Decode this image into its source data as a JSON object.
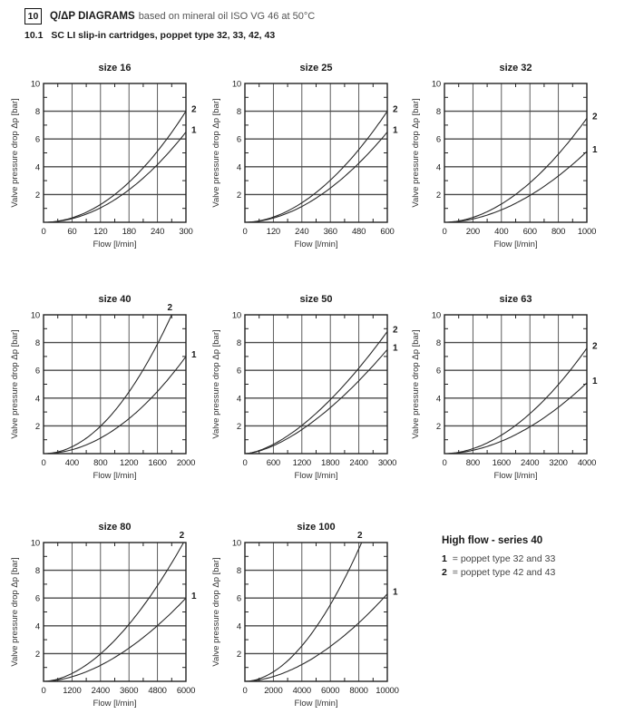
{
  "colors": {
    "ink": "#1a1a1a",
    "grid": "#4a4a4a",
    "muted": "#555555"
  },
  "header": {
    "section_number": "10",
    "title": "Q/ΔP DIAGRAMS",
    "subtitle": "based on mineral oil ISO VG 46 at 50°C",
    "section_sub": "10.1",
    "sub_title": "SC LI  slip-in cartridges, poppet type 32, 33, 42, 43"
  },
  "legend": {
    "title": "High flow - series 40",
    "items": [
      {
        "key": "1",
        "text": "= poppet type 32 and 33"
      },
      {
        "key": "2",
        "text": "= poppet type 42 and 43"
      }
    ]
  },
  "chart_data": [
    {
      "type": "line",
      "title": "size 16",
      "xlabel": "Flow [l/min]",
      "ylabel": "Valve pressure drop Δp [bar]",
      "xlim": [
        0,
        300
      ],
      "ylim": [
        0,
        10
      ],
      "x_ticks": [
        0,
        60,
        120,
        180,
        240,
        300
      ],
      "y_ticks": [
        2,
        4,
        6,
        8,
        10
      ],
      "grid": true,
      "series": [
        {
          "name": "1",
          "exponent": 2.0,
          "x_end": 300,
          "y_end": 6.5,
          "points": [
            [
              0,
              0
            ],
            [
              60,
              0.3
            ],
            [
              120,
              1.0
            ],
            [
              180,
              2.3
            ],
            [
              240,
              4.2
            ],
            [
              300,
              6.5
            ]
          ]
        },
        {
          "name": "2",
          "exponent": 2.0,
          "x_end": 300,
          "y_end": 8.0,
          "points": [
            [
              0,
              0
            ],
            [
              60,
              0.3
            ],
            [
              120,
              1.3
            ],
            [
              180,
              2.9
            ],
            [
              240,
              5.1
            ],
            [
              300,
              8.0
            ]
          ]
        }
      ]
    },
    {
      "type": "line",
      "title": "size 25",
      "xlabel": "Flow [l/min]",
      "ylabel": "Valve pressure drop Δp [bar]",
      "xlim": [
        0,
        600
      ],
      "ylim": [
        0,
        10
      ],
      "x_ticks": [
        0,
        120,
        240,
        360,
        480,
        600
      ],
      "y_ticks": [
        2,
        4,
        6,
        8,
        10
      ],
      "grid": true,
      "series": [
        {
          "name": "1",
          "exponent": 1.9,
          "x_end": 600,
          "y_end": 6.5,
          "points": [
            [
              0,
              0
            ],
            [
              120,
              0.3
            ],
            [
              240,
              1.1
            ],
            [
              360,
              2.5
            ],
            [
              480,
              4.3
            ],
            [
              600,
              6.5
            ]
          ]
        },
        {
          "name": "2",
          "exponent": 1.9,
          "x_end": 600,
          "y_end": 8.0,
          "points": [
            [
              0,
              0
            ],
            [
              120,
              0.4
            ],
            [
              240,
              1.4
            ],
            [
              360,
              3.0
            ],
            [
              480,
              5.2
            ],
            [
              600,
              8.0
            ]
          ]
        }
      ]
    },
    {
      "type": "line",
      "title": "size 32",
      "xlabel": "Flow [l/min]",
      "ylabel": "Valve pressure drop Δp [bar]",
      "xlim": [
        0,
        1000
      ],
      "ylim": [
        0,
        10
      ],
      "x_ticks": [
        0,
        200,
        400,
        600,
        800,
        1000
      ],
      "y_ticks": [
        2,
        4,
        6,
        8,
        10
      ],
      "grid": true,
      "series": [
        {
          "name": "1",
          "exponent": 1.9,
          "x_end": 1000,
          "y_end": 5.1,
          "points": [
            [
              0,
              0
            ],
            [
              200,
              0.2
            ],
            [
              400,
              0.9
            ],
            [
              600,
              1.9
            ],
            [
              800,
              3.3
            ],
            [
              1000,
              5.1
            ]
          ]
        },
        {
          "name": "2",
          "exponent": 1.9,
          "x_end": 1000,
          "y_end": 7.5,
          "points": [
            [
              0,
              0
            ],
            [
              200,
              0.4
            ],
            [
              400,
              1.3
            ],
            [
              600,
              2.8
            ],
            [
              800,
              4.9
            ],
            [
              1000,
              7.5
            ]
          ]
        }
      ]
    },
    {
      "type": "line",
      "title": "size 40",
      "xlabel": "Flow [l/min]",
      "ylabel": "Valve pressure drop Δp [bar]",
      "xlim": [
        0,
        2000
      ],
      "ylim": [
        0,
        10
      ],
      "x_ticks": [
        0,
        400,
        800,
        1200,
        1600,
        2000
      ],
      "y_ticks": [
        2,
        4,
        6,
        8,
        10
      ],
      "grid": true,
      "series": [
        {
          "name": "1",
          "exponent": 2.0,
          "x_end": 2000,
          "y_end": 7.0,
          "points": [
            [
              0,
              0
            ],
            [
              400,
              0.3
            ],
            [
              800,
              1.1
            ],
            [
              1200,
              2.5
            ],
            [
              1600,
              4.5
            ],
            [
              2000,
              7.0
            ]
          ]
        },
        {
          "name": "2",
          "exponent": 2.0,
          "x_end": 1800,
          "y_end": 10.0,
          "points": [
            [
              0,
              0
            ],
            [
              400,
              0.5
            ],
            [
              800,
              2.0
            ],
            [
              1200,
              4.4
            ],
            [
              1600,
              7.9
            ],
            [
              1800,
              10.0
            ]
          ]
        }
      ]
    },
    {
      "type": "line",
      "title": "size 50",
      "xlabel": "Flow [l/min]",
      "ylabel": "Valve pressure drop Δp [bar]",
      "xlim": [
        0,
        3000
      ],
      "ylim": [
        0,
        10
      ],
      "x_ticks": [
        0,
        600,
        1200,
        1800,
        2400,
        3000
      ],
      "y_ticks": [
        2,
        4,
        6,
        8,
        10
      ],
      "grid": true,
      "series": [
        {
          "name": "1",
          "exponent": 1.6,
          "x_end": 3000,
          "y_end": 7.5,
          "points": [
            [
              0,
              0
            ],
            [
              600,
              0.6
            ],
            [
              1200,
              1.7
            ],
            [
              1800,
              3.3
            ],
            [
              2400,
              5.3
            ],
            [
              3000,
              7.5
            ]
          ]
        },
        {
          "name": "2",
          "exponent": 1.6,
          "x_end": 3000,
          "y_end": 8.8,
          "points": [
            [
              0,
              0
            ],
            [
              600,
              0.7
            ],
            [
              1200,
              2.0
            ],
            [
              1800,
              3.9
            ],
            [
              2400,
              6.2
            ],
            [
              3000,
              8.8
            ]
          ]
        }
      ]
    },
    {
      "type": "line",
      "title": "size 63",
      "xlabel": "Flow [l/min]",
      "ylabel": "Valve pressure drop Δp [bar]",
      "xlim": [
        0,
        4000
      ],
      "ylim": [
        0,
        10
      ],
      "x_ticks": [
        0,
        800,
        1600,
        2400,
        3200,
        4000
      ],
      "y_ticks": [
        2,
        4,
        6,
        8,
        10
      ],
      "grid": true,
      "series": [
        {
          "name": "1",
          "exponent": 1.9,
          "x_end": 4000,
          "y_end": 5.1,
          "points": [
            [
              0,
              0
            ],
            [
              800,
              0.2
            ],
            [
              1600,
              0.9
            ],
            [
              2400,
              1.9
            ],
            [
              3200,
              3.3
            ],
            [
              4000,
              5.1
            ]
          ]
        },
        {
          "name": "2",
          "exponent": 1.9,
          "x_end": 4000,
          "y_end": 7.6,
          "points": [
            [
              0,
              0
            ],
            [
              800,
              0.4
            ],
            [
              1600,
              1.3
            ],
            [
              2400,
              2.9
            ],
            [
              3200,
              5.0
            ],
            [
              4000,
              7.6
            ]
          ]
        }
      ]
    },
    {
      "type": "line",
      "title": "size 80",
      "xlabel": "Flow [l/min]",
      "ylabel": "Valve pressure drop Δp [bar]",
      "xlim": [
        0,
        6000
      ],
      "ylim": [
        0,
        10
      ],
      "x_ticks": [
        0,
        1200,
        2400,
        3600,
        4800,
        6000
      ],
      "y_ticks": [
        2,
        4,
        6,
        8,
        10
      ],
      "grid": true,
      "series": [
        {
          "name": "1",
          "exponent": 1.8,
          "x_end": 6000,
          "y_end": 6.0,
          "points": [
            [
              0,
              0
            ],
            [
              1200,
              0.3
            ],
            [
              2400,
              1.2
            ],
            [
              3600,
              2.4
            ],
            [
              4800,
              4.0
            ],
            [
              6000,
              6.0
            ]
          ]
        },
        {
          "name": "2",
          "exponent": 1.8,
          "x_end": 5900,
          "y_end": 10.0,
          "points": [
            [
              0,
              0
            ],
            [
              1200,
              0.6
            ],
            [
              2400,
              2.0
            ],
            [
              3600,
              4.1
            ],
            [
              4800,
              6.9
            ],
            [
              5900,
              10.0
            ]
          ]
        }
      ]
    },
    {
      "type": "line",
      "title": "size 100",
      "xlabel": "Flow [l/min]",
      "ylabel": "Valve pressure drop Δp [bar]",
      "xlim": [
        0,
        10000
      ],
      "ylim": [
        0,
        10
      ],
      "x_ticks": [
        0,
        2000,
        4000,
        6000,
        8000,
        10000
      ],
      "y_ticks": [
        2,
        4,
        6,
        8,
        10
      ],
      "grid": true,
      "series": [
        {
          "name": "1",
          "exponent": 1.8,
          "x_end": 10000,
          "y_end": 6.3,
          "points": [
            [
              0,
              0
            ],
            [
              2000,
              0.3
            ],
            [
              4000,
              1.2
            ],
            [
              6000,
              2.5
            ],
            [
              8000,
              4.2
            ],
            [
              10000,
              6.3
            ]
          ]
        },
        {
          "name": "2",
          "exponent": 1.9,
          "x_end": 8200,
          "y_end": 10.0,
          "points": [
            [
              0,
              0
            ],
            [
              2000,
              0.7
            ],
            [
              4000,
              2.6
            ],
            [
              6000,
              5.5
            ],
            [
              8000,
              9.5
            ],
            [
              8200,
              10.0
            ]
          ]
        }
      ]
    }
  ]
}
